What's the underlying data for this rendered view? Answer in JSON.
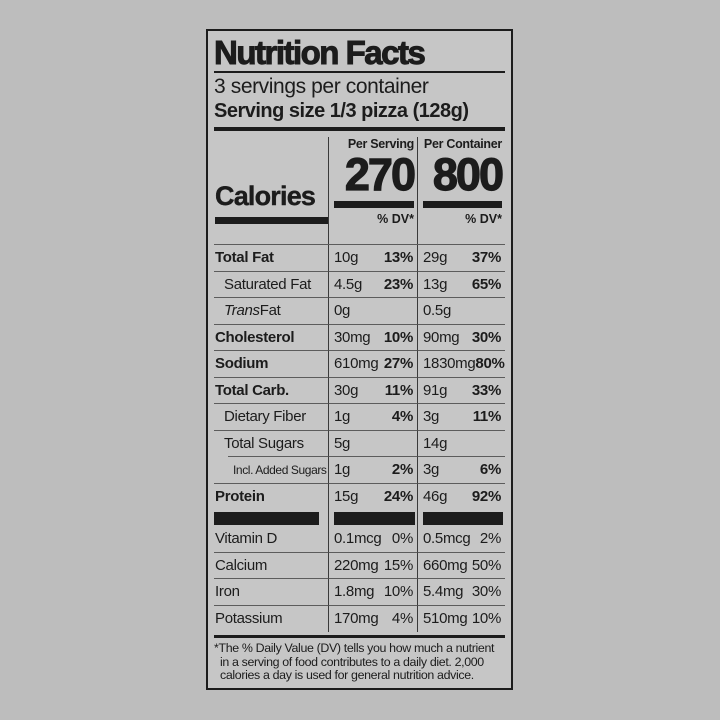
{
  "nutrition_label": {
    "title": "Nutrition Facts",
    "servings_per_container": "3 servings per container",
    "serving_size": "Serving size 1/3 pizza (128g)",
    "calories": {
      "label": "Calories",
      "columns": [
        {
          "header": "Per Serving",
          "value": "270",
          "dv_header": "% DV*"
        },
        {
          "header": "Per Container",
          "value": "800",
          "dv_header": "% DV*"
        }
      ]
    },
    "nutrients": [
      {
        "name": "Total Fat",
        "ps_amt": "10g",
        "ps_dv": "13%",
        "pc_amt": "29g",
        "pc_dv": "37%"
      },
      {
        "name": "Saturated Fat",
        "ps_amt": "4.5g",
        "ps_dv": "23%",
        "pc_amt": "13g",
        "pc_dv": "65%"
      },
      {
        "name_italic": "Trans",
        "name": " Fat",
        "ps_amt": "0g",
        "ps_dv": "",
        "pc_amt": "0.5g",
        "pc_dv": ""
      },
      {
        "name": "Cholesterol",
        "ps_amt": "30mg",
        "ps_dv": "10%",
        "pc_amt": "90mg",
        "pc_dv": "30%"
      },
      {
        "name": "Sodium",
        "ps_amt": "610mg",
        "ps_dv": "27%",
        "pc_amt": "1830mg",
        "pc_dv": "80%"
      },
      {
        "name": "Total Carb.",
        "ps_amt": "30g",
        "ps_dv": "11%",
        "pc_amt": "91g",
        "pc_dv": "33%"
      },
      {
        "name": "Dietary Fiber",
        "ps_amt": "1g",
        "ps_dv": "4%",
        "pc_amt": "3g",
        "pc_dv": "11%"
      },
      {
        "name": "Total Sugars",
        "ps_amt": "5g",
        "ps_dv": "",
        "pc_amt": "14g",
        "pc_dv": ""
      },
      {
        "name": "Incl. Added Sugars",
        "ps_amt": "1g",
        "ps_dv": "2%",
        "pc_amt": "3g",
        "pc_dv": "6%"
      },
      {
        "name": "Protein",
        "ps_amt": "15g",
        "ps_dv": "24%",
        "pc_amt": "46g",
        "pc_dv": "92%"
      }
    ],
    "vitamins": [
      {
        "name": "Vitamin D",
        "ps_amt": "0.1mcg",
        "ps_dv": "0%",
        "pc_amt": "0.5mcg",
        "pc_dv": "2%"
      },
      {
        "name": "Calcium",
        "ps_amt": "220mg",
        "ps_dv": "15%",
        "pc_amt": "660mg",
        "pc_dv": "50%"
      },
      {
        "name": "Iron",
        "ps_amt": "1.8mg",
        "ps_dv": "10%",
        "pc_amt": "5.4mg",
        "pc_dv": "30%"
      },
      {
        "name": "Potassium",
        "ps_amt": "170mg",
        "ps_dv": "4%",
        "pc_amt": "510mg",
        "pc_dv": "10%"
      }
    ],
    "footnote": "*The % Daily Value (DV) tells you how much a nutrient in a serving of food contributes to a daily diet. 2,000 calories a day is used for general nutrition advice.",
    "colors": {
      "background": "#bdbdbd",
      "label_background": "#c6c6c6",
      "ink": "#1c1c1c",
      "rule": "#5c5c5c"
    }
  }
}
